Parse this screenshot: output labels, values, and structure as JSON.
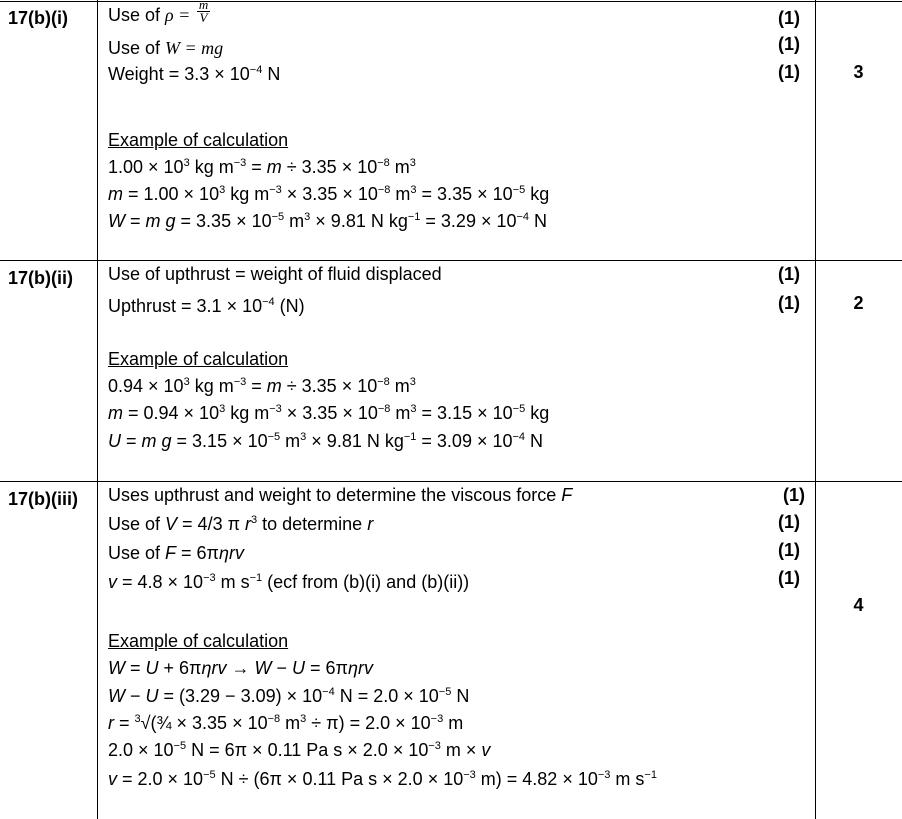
{
  "rows": [
    {
      "label": "17(b)(i)",
      "total": "3",
      "marks": [
        "(1)",
        "(1)",
        "(1)"
      ],
      "lines": [
        [
          "Use of ",
          [
            "m",
            "ρ = "
          ],
          [
            "frac",
            "m",
            "V"
          ]
        ],
        [
          "Use of ",
          [
            "m",
            "W = mg"
          ]
        ],
        [
          "Weight = 3.3 × 10",
          [
            "s",
            "−4"
          ],
          " N"
        ],
        [
          [
            "u",
            "Example of calculation"
          ]
        ],
        [
          "1.00 × 10",
          [
            "s",
            "3"
          ],
          " kg m",
          [
            "s",
            "−3"
          ],
          " = ",
          [
            "i",
            "m"
          ],
          " ÷ 3.35 × 10",
          [
            "s",
            "−8"
          ],
          " m",
          [
            "s",
            "3"
          ]
        ],
        [
          [
            "i",
            "m"
          ],
          " = 1.00 × 10",
          [
            "s",
            "3"
          ],
          " kg m",
          [
            "s",
            "−3"
          ],
          " × 3.35 × 10",
          [
            "s",
            "−8"
          ],
          " m",
          [
            "s",
            "3"
          ],
          " = 3.35 × 10",
          [
            "s",
            "−5"
          ],
          " kg"
        ],
        [
          [
            "i",
            "W"
          ],
          " = ",
          [
            "i",
            "m g"
          ],
          " = 3.35 × 10",
          [
            "s",
            "−5"
          ],
          " m",
          [
            "s",
            "3"
          ],
          " × 9.81 N kg",
          [
            "s",
            "−1"
          ],
          " =  3.29 × 10",
          [
            "s",
            "−4"
          ],
          " N"
        ]
      ]
    },
    {
      "label": "17(b)(ii)",
      "total": "2",
      "marks": [
        "(1)",
        "(1)"
      ],
      "lines": [
        [
          "Use of upthrust = weight of fluid displaced"
        ],
        [
          "Upthrust = 3.1 × 10",
          [
            "s",
            "−4"
          ],
          " (N)"
        ],
        [
          [
            "u",
            "Example of calculation"
          ]
        ],
        [
          "0.94 × 10",
          [
            "s",
            "3"
          ],
          " kg m",
          [
            "s",
            "−3"
          ],
          " = ",
          [
            "i",
            "m"
          ],
          " ÷ 3.35 × 10",
          [
            "s",
            "−8"
          ],
          " m",
          [
            "s",
            "3"
          ]
        ],
        [
          [
            "i",
            "m"
          ],
          " = 0.94 × 10",
          [
            "s",
            "3"
          ],
          " kg m",
          [
            "s",
            "−3"
          ],
          " × 3.35 × 10",
          [
            "s",
            "−8"
          ],
          " m",
          [
            "s",
            "3"
          ],
          " = 3.15 × 10",
          [
            "s",
            "−5"
          ],
          " kg"
        ],
        [
          [
            "i",
            "U"
          ],
          " = ",
          [
            "i",
            "m g"
          ],
          " = 3.15 × 10",
          [
            "s",
            "−5"
          ],
          " m",
          [
            "s",
            "3"
          ],
          " × 9.81 N kg",
          [
            "s",
            "−1"
          ],
          " = 3.09 × 10",
          [
            "s",
            "−4"
          ],
          " N"
        ]
      ]
    },
    {
      "label": "17(b)(iii)",
      "total": "4",
      "marks": [
        "(1)",
        "(1)",
        "(1)",
        "(1)"
      ],
      "lines": [
        [
          "Uses upthrust and weight to determine the viscous force ",
          [
            "i",
            "F"
          ]
        ],
        [
          "Use of ",
          [
            "i",
            "V"
          ],
          " = 4/3 π ",
          [
            "i",
            "r"
          ],
          [
            "s",
            "3"
          ],
          " to determine ",
          [
            "i",
            "r"
          ]
        ],
        [
          "Use of ",
          [
            "i",
            "F"
          ],
          " = 6π",
          [
            "i",
            "ηrv"
          ]
        ],
        [
          [
            "i",
            "v"
          ],
          " = 4.8 × 10",
          [
            "s",
            "−3"
          ],
          " m s",
          [
            "s",
            "−1"
          ],
          " (ecf from (b)(i) and (b)(ii))"
        ],
        [
          [
            "u",
            "Example of calculation"
          ]
        ],
        [
          [
            "i",
            "W"
          ],
          " = ",
          [
            "i",
            "U"
          ],
          " + 6π",
          [
            "i",
            "ηrv"
          ],
          " → ",
          [
            "i",
            "W"
          ],
          " − ",
          [
            "i",
            "U"
          ],
          " = 6π",
          [
            "i",
            "ηrv"
          ]
        ],
        [
          [
            "i",
            "W"
          ],
          " − ",
          [
            "i",
            "U"
          ],
          " = (3.29 − 3.09) × 10",
          [
            "s",
            "−4"
          ],
          " N = 2.0 × 10",
          [
            "s",
            "−5"
          ],
          " N"
        ],
        [
          [
            "i",
            "r"
          ],
          " = ",
          [
            "s",
            "3"
          ],
          "√(¾ × 3.35 × 10",
          [
            "s",
            "−8"
          ],
          " m",
          [
            "s",
            "3"
          ],
          " ÷ π) = 2.0 × 10",
          [
            "s",
            "−3"
          ],
          " m"
        ],
        [
          "2.0 × 10",
          [
            "s",
            "−5"
          ],
          " N = 6π × 0.11 Pa s × 2.0 × 10",
          [
            "s",
            "−3"
          ],
          " m × ",
          [
            "i",
            "v"
          ]
        ],
        [
          [
            "i",
            "v"
          ],
          " = 2.0 × 10",
          [
            "s",
            "−5"
          ],
          " N ÷ (6π × 0.11 Pa s × 2.0 × 10",
          [
            "s",
            "−3"
          ],
          " m) = 4.82 × 10",
          [
            "s",
            "−3"
          ],
          " m s",
          [
            "s",
            "−1"
          ]
        ]
      ]
    }
  ]
}
